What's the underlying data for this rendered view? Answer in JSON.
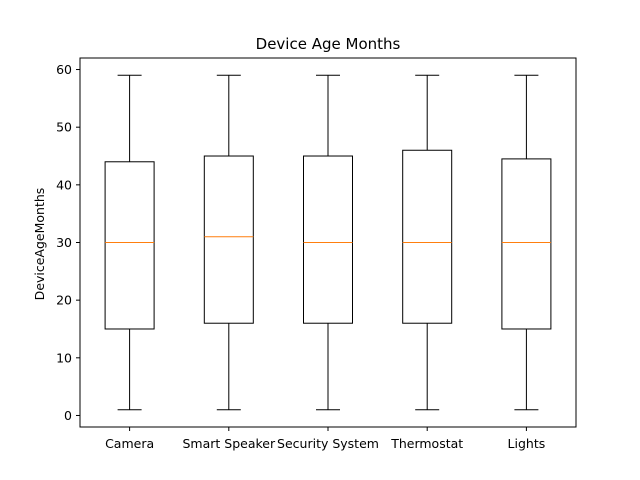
{
  "chart_data": {
    "type": "box",
    "title": "Device Age Months",
    "xlabel": "",
    "ylabel": "DeviceAgeMonths",
    "ylim": [
      -2,
      62
    ],
    "yticks": [
      0,
      10,
      20,
      30,
      40,
      50,
      60
    ],
    "grid": false,
    "categories": [
      "Camera",
      "Smart Speaker",
      "Security System",
      "Thermostat",
      "Lights"
    ],
    "boxes": [
      {
        "whisker_low": 1,
        "q1": 15,
        "median": 30,
        "q3": 44,
        "whisker_high": 59
      },
      {
        "whisker_low": 1,
        "q1": 16,
        "median": 31,
        "q3": 45,
        "whisker_high": 59
      },
      {
        "whisker_low": 1,
        "q1": 16,
        "median": 30,
        "q3": 45,
        "whisker_high": 59
      },
      {
        "whisker_low": 1,
        "q1": 16,
        "median": 30,
        "q3": 46,
        "whisker_high": 59
      },
      {
        "whisker_low": 1,
        "q1": 15,
        "median": 30,
        "q3": 44.5,
        "whisker_high": 59
      }
    ],
    "colors": {
      "box": "#000000",
      "median": "#ff7f0e"
    }
  }
}
